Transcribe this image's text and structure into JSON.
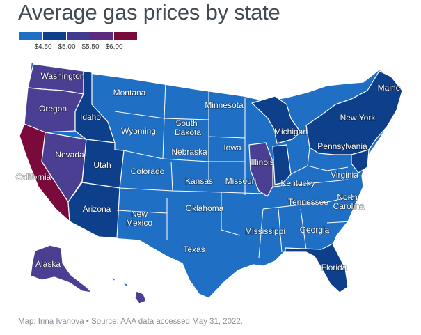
{
  "title": "Average gas prices by state",
  "legend": {
    "bins": [
      {
        "label": "$4.50",
        "color": "#1f6fc5"
      },
      {
        "label": "$5.00",
        "color": "#0d3f8a"
      },
      {
        "label": "$5.50",
        "color": "#3f3a8e"
      },
      {
        "label": "$6.00",
        "color": "#5e2a7e"
      },
      {
        "label": "",
        "color": "#7a0a3c"
      }
    ]
  },
  "colors": {
    "tier1": "#1f6fc5",
    "tier2": "#0d3f8a",
    "tier3": "#4a3f93",
    "tier4": "#5b2a82",
    "tier5": "#7a0a3c",
    "border": "#ffffff"
  },
  "state_labels": {
    "washington": "Washington",
    "oregon": "Oregon",
    "california": "California",
    "nevada": "Nevada",
    "idaho": "Idaho",
    "montana": "Montana",
    "wyoming": "Wyoming",
    "utah": "Utah",
    "arizona": "Arizona",
    "colorado": "Colorado",
    "new_mexico_1": "New",
    "new_mexico_2": "Mexico",
    "south_dakota_1": "South",
    "south_dakota_2": "Dakota",
    "nebraska": "Nebraska",
    "kansas": "Kansas",
    "oklahoma": "Oklahoma",
    "texas": "Texas",
    "minnesota": "Minnesota",
    "iowa": "Iowa",
    "missouri": "Missouri",
    "illinois": "Illinois",
    "michigan": "Michigan",
    "kentucky": "Kentucky",
    "tennessee": "Tennessee",
    "mississippi": "Mississippi",
    "georgia": "Georgia",
    "florida": "Florida",
    "north_carolina_1": "North",
    "north_carolina_2": "Carolina",
    "virginia": "Virginia",
    "pennsylvania": "Pennsylvania",
    "new_york": "New York",
    "maine": "Maine",
    "alaska": "Alaska"
  },
  "caption": "Map: Irina Ivanova • Source: AAA data accessed May 31, 2022."
}
